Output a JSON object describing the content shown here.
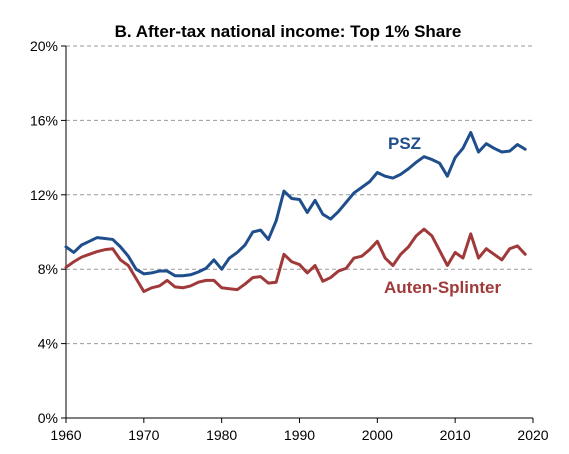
{
  "chart_data": {
    "type": "line",
    "title": "B. After-tax national income: Top 1% Share",
    "xlabel": "",
    "ylabel": "",
    "xlim": [
      1960,
      2020
    ],
    "ylim": [
      0,
      20
    ],
    "x_ticks": [
      "1960",
      "1970",
      "1980",
      "1990",
      "2000",
      "2010",
      "2020"
    ],
    "y_ticks": [
      "0%",
      "4%",
      "8%",
      "12%",
      "16%",
      "20%"
    ],
    "grid": "horizontal",
    "legend": "inline labels",
    "colors": {
      "psz": "#1f4e8c",
      "auten_splinter": "#a03a3a"
    },
    "series": [
      {
        "name": "PSZ",
        "values": [
          [
            1960,
            9.2
          ],
          [
            1961,
            8.9
          ],
          [
            1962,
            9.3
          ],
          [
            1963,
            9.5
          ],
          [
            1964,
            9.7
          ],
          [
            1965,
            9.65
          ],
          [
            1966,
            9.6
          ],
          [
            1967,
            9.2
          ],
          [
            1968,
            8.7
          ],
          [
            1969,
            8.0
          ],
          [
            1970,
            7.75
          ],
          [
            1971,
            7.8
          ],
          [
            1972,
            7.9
          ],
          [
            1973,
            7.9
          ],
          [
            1974,
            7.65
          ],
          [
            1975,
            7.65
          ],
          [
            1976,
            7.7
          ],
          [
            1977,
            7.85
          ],
          [
            1978,
            8.05
          ],
          [
            1979,
            8.5
          ],
          [
            1980,
            8.0
          ],
          [
            1981,
            8.6
          ],
          [
            1982,
            8.9
          ],
          [
            1983,
            9.3
          ],
          [
            1984,
            10.0
          ],
          [
            1985,
            10.1
          ],
          [
            1986,
            9.6
          ],
          [
            1987,
            10.6
          ],
          [
            1988,
            12.2
          ],
          [
            1989,
            11.8
          ],
          [
            1990,
            11.75
          ],
          [
            1991,
            11.05
          ],
          [
            1992,
            11.7
          ],
          [
            1993,
            10.95
          ],
          [
            1994,
            10.7
          ],
          [
            1995,
            11.1
          ],
          [
            1996,
            11.6
          ],
          [
            1997,
            12.1
          ],
          [
            1998,
            12.4
          ],
          [
            1999,
            12.7
          ],
          [
            2000,
            13.2
          ],
          [
            2001,
            13.0
          ],
          [
            2002,
            12.9
          ],
          [
            2003,
            13.1
          ],
          [
            2004,
            13.4
          ],
          [
            2005,
            13.75
          ],
          [
            2006,
            14.05
          ],
          [
            2007,
            13.9
          ],
          [
            2008,
            13.7
          ],
          [
            2009,
            13.0
          ],
          [
            2010,
            14.0
          ],
          [
            2011,
            14.5
          ],
          [
            2012,
            15.35
          ],
          [
            2013,
            14.3
          ],
          [
            2014,
            14.75
          ],
          [
            2015,
            14.5
          ],
          [
            2016,
            14.3
          ],
          [
            2017,
            14.35
          ],
          [
            2018,
            14.7
          ],
          [
            2019,
            14.45
          ]
        ]
      },
      {
        "name": "Auten-Splinter",
        "values": [
          [
            1960,
            8.1
          ],
          [
            1961,
            8.4
          ],
          [
            1962,
            8.65
          ],
          [
            1963,
            8.8
          ],
          [
            1964,
            8.95
          ],
          [
            1965,
            9.05
          ],
          [
            1966,
            9.1
          ],
          [
            1967,
            8.5
          ],
          [
            1968,
            8.2
          ],
          [
            1969,
            7.5
          ],
          [
            1970,
            6.8
          ],
          [
            1971,
            7.0
          ],
          [
            1972,
            7.1
          ],
          [
            1973,
            7.4
          ],
          [
            1974,
            7.05
          ],
          [
            1975,
            7.0
          ],
          [
            1976,
            7.1
          ],
          [
            1977,
            7.3
          ],
          [
            1978,
            7.4
          ],
          [
            1979,
            7.4
          ],
          [
            1980,
            7.0
          ],
          [
            1981,
            6.95
          ],
          [
            1982,
            6.9
          ],
          [
            1983,
            7.2
          ],
          [
            1984,
            7.55
          ],
          [
            1985,
            7.6
          ],
          [
            1986,
            7.25
          ],
          [
            1987,
            7.3
          ],
          [
            1988,
            8.8
          ],
          [
            1989,
            8.4
          ],
          [
            1990,
            8.25
          ],
          [
            1991,
            7.8
          ],
          [
            1992,
            8.2
          ],
          [
            1993,
            7.35
          ],
          [
            1994,
            7.55
          ],
          [
            1995,
            7.9
          ],
          [
            1996,
            8.05
          ],
          [
            1997,
            8.6
          ],
          [
            1998,
            8.7
          ],
          [
            1999,
            9.05
          ],
          [
            2000,
            9.5
          ],
          [
            2001,
            8.6
          ],
          [
            2002,
            8.2
          ],
          [
            2003,
            8.8
          ],
          [
            2004,
            9.2
          ],
          [
            2005,
            9.8
          ],
          [
            2006,
            10.15
          ],
          [
            2007,
            9.8
          ],
          [
            2008,
            9.0
          ],
          [
            2009,
            8.2
          ],
          [
            2010,
            8.9
          ],
          [
            2011,
            8.6
          ],
          [
            2012,
            9.9
          ],
          [
            2013,
            8.6
          ],
          [
            2014,
            9.1
          ],
          [
            2015,
            8.8
          ],
          [
            2016,
            8.5
          ],
          [
            2017,
            9.1
          ],
          [
            2018,
            9.25
          ],
          [
            2019,
            8.8
          ]
        ]
      }
    ]
  }
}
